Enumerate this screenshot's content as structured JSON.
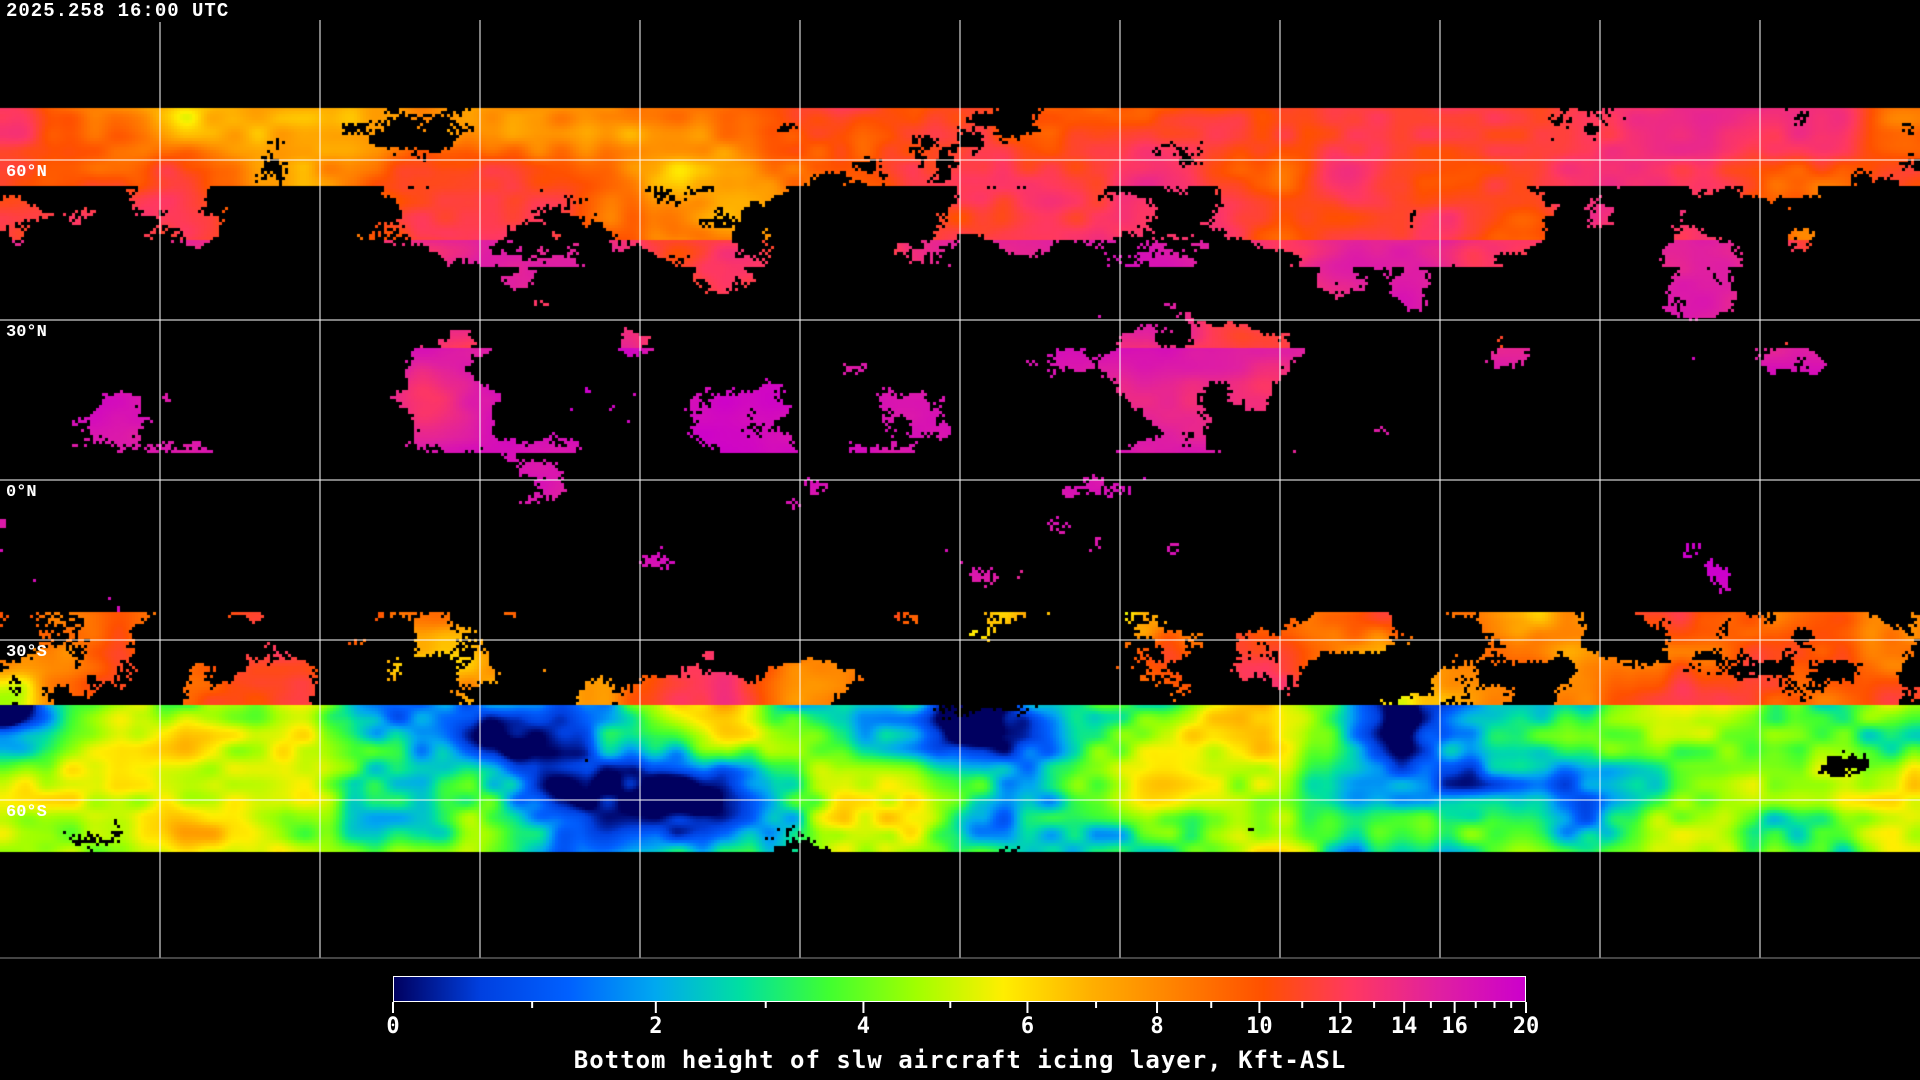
{
  "timestamp": "2025.258 16:00 UTC",
  "lat_labels": [
    "60°N",
    "30°N",
    "0°N",
    "30°S",
    "60°S"
  ],
  "map": {
    "projection": "equirectangular",
    "graticule_spacing_deg": 30,
    "graticule_color": "#ffffff",
    "coastline_color": "#ffffff",
    "background": "#000000"
  },
  "colorbar": {
    "title": "Bottom height of slw aircraft icing layer, Kft-ASL",
    "min": 0,
    "max": 20,
    "major_ticks": [
      0,
      2,
      4,
      6,
      8,
      10,
      12,
      14,
      16,
      20
    ],
    "major_tick_labels": [
      "0",
      "2",
      "4",
      "6",
      "8",
      "10",
      "12",
      "14",
      "16",
      "20"
    ],
    "minor_ticks": [
      1,
      3,
      5,
      7,
      9,
      11,
      13,
      15,
      17,
      18,
      19
    ],
    "colors": [
      "#000060",
      "#0040e0",
      "#0060ff",
      "#00a8f0",
      "#00e0a0",
      "#40ff30",
      "#a0ff00",
      "#ffee00",
      "#ffb000",
      "#ff8000",
      "#ff5000",
      "#ff3860",
      "#e020a0",
      "#cc00cc"
    ]
  }
}
